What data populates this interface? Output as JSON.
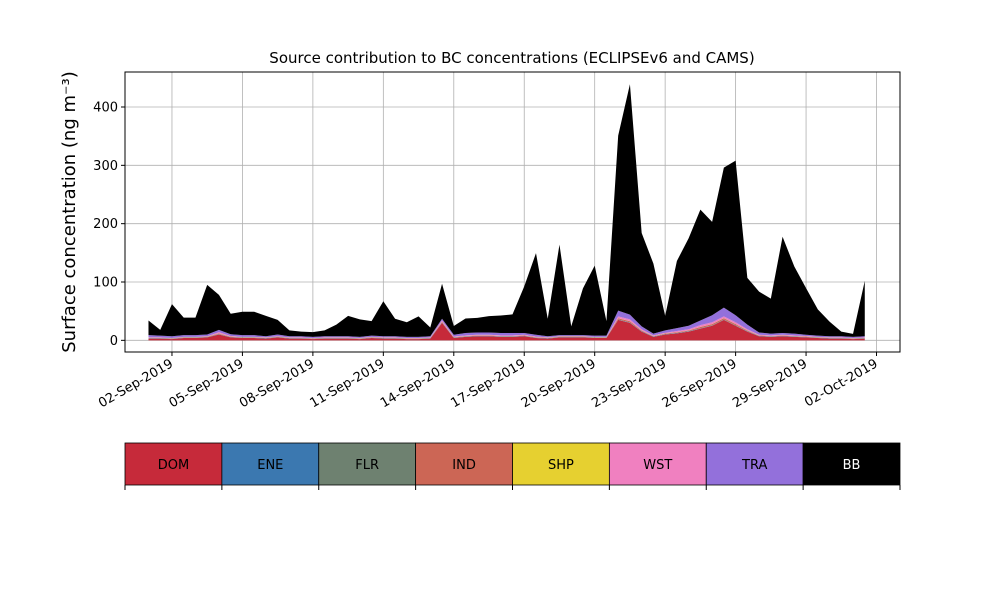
{
  "chart_data": {
    "type": "area",
    "title": "Source contribution to BC concentrations (ECLIPSEv6 and CAMS)",
    "ylabel": "Surface concentration (ng m⁻³)",
    "xlabel": "",
    "ylim": [
      -20,
      460
    ],
    "xlim": [
      "2019-08-31",
      "2019-10-03"
    ],
    "grid": true,
    "stacked": true,
    "yticks": [
      0,
      100,
      200,
      300,
      400
    ],
    "xticks": [
      "02-Sep-2019",
      "05-Sep-2019",
      "08-Sep-2019",
      "11-Sep-2019",
      "14-Sep-2019",
      "17-Sep-2019",
      "20-Sep-2019",
      "23-Sep-2019",
      "26-Sep-2019",
      "29-Sep-2019",
      "02-Oct-2019"
    ],
    "series_colors": {
      "DOM": "#c62a3a",
      "ENE": "#3b78b0",
      "FLR": "#6e8170",
      "IND": "#cc6655",
      "SHP": "#e6d030",
      "WST": "#f080c0",
      "TRA": "#9370db",
      "BB": "#000000"
    },
    "x": [
      "2019-09-01",
      "2019-09-01T12",
      "2019-09-02",
      "2019-09-02T12",
      "2019-09-03",
      "2019-09-03T12",
      "2019-09-04",
      "2019-09-04T12",
      "2019-09-05",
      "2019-09-05T12",
      "2019-09-06",
      "2019-09-06T12",
      "2019-09-07",
      "2019-09-07T12",
      "2019-09-08",
      "2019-09-08T12",
      "2019-09-09",
      "2019-09-09T12",
      "2019-09-10",
      "2019-09-10T12",
      "2019-09-11",
      "2019-09-11T12",
      "2019-09-12",
      "2019-09-12T12",
      "2019-09-13",
      "2019-09-13T12",
      "2019-09-14",
      "2019-09-14T12",
      "2019-09-15",
      "2019-09-15T12",
      "2019-09-16",
      "2019-09-16T12",
      "2019-09-17",
      "2019-09-17T12",
      "2019-09-18",
      "2019-09-18T12",
      "2019-09-19",
      "2019-09-19T12",
      "2019-09-20",
      "2019-09-20T12",
      "2019-09-21",
      "2019-09-21T12",
      "2019-09-22",
      "2019-09-22T12",
      "2019-09-23",
      "2019-09-23T12",
      "2019-09-24",
      "2019-09-24T12",
      "2019-09-25",
      "2019-09-25T12",
      "2019-09-26",
      "2019-09-26T12",
      "2019-09-27",
      "2019-09-27T12",
      "2019-09-28",
      "2019-09-28T12",
      "2019-09-29",
      "2019-09-29T12",
      "2019-09-30",
      "2019-09-30T12",
      "2019-10-01",
      "2019-10-01T12"
    ],
    "series": [
      {
        "name": "DOM",
        "values": [
          3,
          3,
          2,
          4,
          4,
          5,
          10,
          5,
          4,
          4,
          3,
          5,
          3,
          3,
          2,
          3,
          3,
          3,
          2,
          4,
          3,
          3,
          2,
          2,
          3,
          30,
          4,
          6,
          7,
          7,
          6,
          6,
          7,
          4,
          3,
          5,
          5,
          5,
          4,
          4,
          35,
          30,
          15,
          6,
          10,
          12,
          15,
          20,
          25,
          35,
          25,
          15,
          7,
          6,
          7,
          6,
          5,
          4,
          3,
          3,
          2,
          3
        ]
      },
      {
        "name": "ENE",
        "values": [
          0.5,
          0.5,
          0.5,
          0.5,
          0.5,
          0.5,
          0.5,
          0.5,
          0.5,
          0.5,
          0.5,
          0.5,
          0.5,
          0.5,
          0.5,
          0.5,
          0.5,
          0.5,
          0.5,
          0.5,
          0.5,
          0.5,
          0.5,
          0.5,
          0.5,
          0.5,
          0.5,
          0.5,
          0.5,
          0.5,
          0.5,
          0.5,
          0.5,
          0.5,
          0.5,
          0.5,
          0.5,
          0.5,
          0.5,
          0.5,
          0.5,
          0.5,
          0.5,
          0.5,
          0.5,
          0.5,
          0.5,
          0.5,
          0.5,
          0.5,
          0.5,
          0.5,
          0.5,
          0.5,
          0.5,
          0.5,
          0.5,
          0.5,
          0.5,
          0.5,
          0.5,
          0.5
        ]
      },
      {
        "name": "FLR",
        "values": [
          0.3,
          0.3,
          0.3,
          0.3,
          0.3,
          0.3,
          0.3,
          0.3,
          0.3,
          0.3,
          0.3,
          0.3,
          0.3,
          0.3,
          0.3,
          0.3,
          0.3,
          0.3,
          0.3,
          0.3,
          0.3,
          0.3,
          0.3,
          0.3,
          0.3,
          0.3,
          0.3,
          0.3,
          0.3,
          0.3,
          0.3,
          0.3,
          0.3,
          0.3,
          0.3,
          0.3,
          0.3,
          0.3,
          0.3,
          0.3,
          0.3,
          0.3,
          0.3,
          0.3,
          0.3,
          0.3,
          0.3,
          0.3,
          0.3,
          0.3,
          0.3,
          0.3,
          0.3,
          0.3,
          0.3,
          0.3,
          0.3,
          0.3,
          0.3,
          0.3,
          0.3,
          0.3
        ]
      },
      {
        "name": "IND",
        "values": [
          0.5,
          0.5,
          0.5,
          0.5,
          0.5,
          0.5,
          1,
          0.5,
          0.5,
          0.5,
          0.5,
          0.5,
          0.5,
          0.5,
          0.5,
          0.5,
          0.5,
          0.5,
          0.5,
          0.5,
          0.5,
          0.5,
          0.5,
          0.5,
          0.5,
          1,
          0.5,
          0.5,
          0.5,
          0.5,
          0.5,
          0.5,
          0.5,
          0.5,
          0.5,
          0.5,
          0.5,
          0.5,
          0.5,
          0.5,
          2,
          2,
          1,
          0.5,
          1,
          1,
          1,
          2,
          2,
          2,
          2,
          1,
          0.5,
          0.5,
          0.5,
          0.5,
          0.5,
          0.5,
          0.5,
          0.5,
          0.5,
          0.5
        ]
      },
      {
        "name": "SHP",
        "values": [
          0.2,
          0.2,
          0.2,
          0.2,
          0.2,
          0.2,
          0.2,
          0.2,
          0.2,
          0.2,
          0.2,
          0.2,
          0.2,
          0.2,
          0.2,
          0.2,
          0.2,
          0.2,
          0.2,
          0.2,
          0.2,
          0.2,
          0.2,
          0.2,
          0.2,
          0.2,
          0.2,
          0.2,
          0.2,
          0.2,
          0.2,
          0.2,
          0.2,
          0.2,
          0.2,
          0.2,
          0.2,
          0.2,
          0.2,
          0.2,
          0.2,
          0.2,
          0.2,
          0.2,
          0.2,
          0.2,
          0.2,
          0.2,
          0.2,
          0.2,
          0.2,
          0.2,
          0.2,
          0.2,
          0.2,
          0.2,
          0.2,
          0.2,
          0.2,
          0.2,
          0.2,
          0.2
        ]
      },
      {
        "name": "WST",
        "values": [
          0.5,
          0.5,
          0.5,
          0.5,
          0.5,
          0.5,
          2,
          1,
          0.5,
          0.5,
          0.5,
          0.5,
          0.5,
          0.5,
          0.5,
          0.5,
          0.5,
          0.5,
          0.5,
          0.5,
          0.5,
          0.5,
          0.5,
          0.5,
          0.5,
          2,
          1,
          1,
          1,
          1,
          1,
          1,
          1,
          1,
          0.5,
          0.5,
          0.5,
          0.5,
          0.5,
          0.5,
          3,
          3,
          2,
          1,
          1,
          2,
          2,
          3,
          3,
          3,
          3,
          2,
          1,
          1,
          1,
          1,
          1,
          0.5,
          0.5,
          0.5,
          0.5,
          0.5
        ]
      },
      {
        "name": "TRA",
        "values": [
          4,
          3,
          3,
          3,
          3,
          3,
          4,
          3,
          3,
          3,
          2,
          3,
          2,
          2,
          2,
          2,
          2,
          2,
          2,
          2,
          2,
          2,
          2,
          2,
          2,
          3,
          3,
          4,
          4,
          4,
          4,
          4,
          3,
          3,
          2,
          2,
          2,
          2,
          2,
          2,
          10,
          8,
          5,
          3,
          4,
          5,
          6,
          8,
          12,
          15,
          12,
          8,
          4,
          3,
          3,
          3,
          2,
          2,
          2,
          2,
          2,
          2
        ]
      },
      {
        "name": "BB",
        "values": [
          25,
          10,
          55,
          30,
          30,
          85,
          60,
          35,
          40,
          40,
          35,
          25,
          10,
          8,
          8,
          10,
          20,
          35,
          30,
          25,
          60,
          30,
          25,
          35,
          15,
          60,
          15,
          25,
          25,
          28,
          30,
          32,
          80,
          140,
          30,
          155,
          15,
          80,
          120,
          25,
          300,
          395,
          160,
          120,
          25,
          115,
          150,
          190,
          160,
          240,
          265,
          80,
          70,
          60,
          165,
          115,
          80,
          45,
          25,
          8,
          5,
          95
        ]
      }
    ]
  },
  "legend_bar": {
    "items": [
      {
        "label": "DOM",
        "color": "#c62a3a",
        "text_color": "#000000"
      },
      {
        "label": "ENE",
        "color": "#3b78b0",
        "text_color": "#000000"
      },
      {
        "label": "FLR",
        "color": "#6e8170",
        "text_color": "#000000"
      },
      {
        "label": "IND",
        "color": "#cc6655",
        "text_color": "#000000"
      },
      {
        "label": "SHP",
        "color": "#e6d030",
        "text_color": "#000000"
      },
      {
        "label": "WST",
        "color": "#f080c0",
        "text_color": "#000000"
      },
      {
        "label": "TRA",
        "color": "#9370db",
        "text_color": "#000000"
      },
      {
        "label": "BB",
        "color": "#000000",
        "text_color": "#ffffff"
      }
    ]
  }
}
